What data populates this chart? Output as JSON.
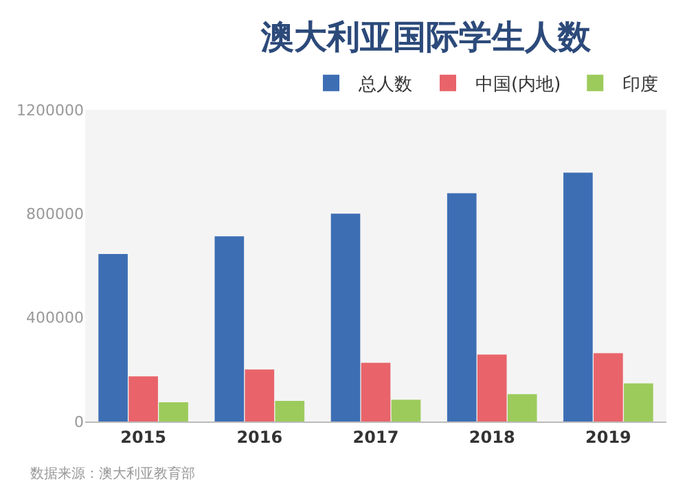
{
  "chart_data": {
    "type": "bar",
    "title": "澳大利亚国际学生人数",
    "categories": [
      "2015",
      "2016",
      "2017",
      "2018",
      "2019"
    ],
    "series": [
      {
        "name": "总人数",
        "color": "#3d6eb4",
        "values": [
          645000,
          713000,
          800000,
          879000,
          958000
        ]
      },
      {
        "name": "中国(内地)",
        "color": "#e8646a",
        "values": [
          174000,
          200000,
          226000,
          258000,
          263000
        ]
      },
      {
        "name": "印度",
        "color": "#9ccb5c",
        "values": [
          74000,
          79000,
          84000,
          105000,
          147000
        ]
      }
    ],
    "ylim": [
      0,
      1200000
    ],
    "yticks": [
      0,
      400000,
      800000,
      1200000
    ],
    "grid": false,
    "legend": "top right",
    "annotations": [
      "数据来源：澳大利亚教育部"
    ]
  }
}
